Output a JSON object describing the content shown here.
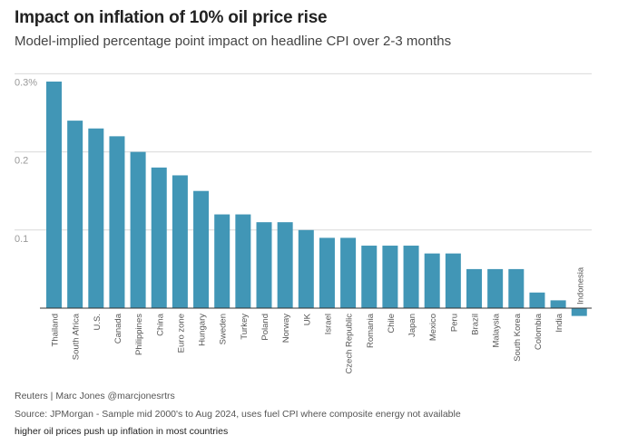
{
  "title": "Impact on inflation of 10% oil price rise",
  "subtitle": "Model-implied percentage point impact on headline CPI over 2-3 months",
  "credit": "Reuters | Marc Jones @marcjonesrtrs",
  "source": "Source: JPMorgan - Sample mid 2000's to Aug 2024, uses fuel CPI where composite energy not available",
  "caption": "higher oil prices push up inflation in most countries",
  "colors": {
    "bar": "#4196b6",
    "grid": "#d9d9d9",
    "tick": "#999999",
    "label": "#555555"
  },
  "chart_data": {
    "type": "bar",
    "title": "Impact on inflation of 10% oil price rise",
    "subtitle": "Model-implied percentage point impact on headline CPI over 2-3 months",
    "xlabel": "",
    "ylabel": "",
    "ylim": [
      0,
      0.3
    ],
    "yticks": [
      {
        "value": 0.3,
        "label": "0.3%"
      },
      {
        "value": 0.2,
        "label": "0.2"
      },
      {
        "value": 0.1,
        "label": "0.1"
      }
    ],
    "grid": true,
    "categories": [
      "Thailand",
      "South Africa",
      "U.S.",
      "Canada",
      "Philippines",
      "China",
      "Euro zone",
      "Hungary",
      "Sweden",
      "Turkey",
      "Poland",
      "Norway",
      "UK",
      "Israel",
      "Czech Republic",
      "Romania",
      "Chile",
      "Japan",
      "Mexico",
      "Peru",
      "Brazil",
      "Malaysia",
      "South Korea",
      "Colombia",
      "India",
      "Indonesia"
    ],
    "values": [
      0.29,
      0.24,
      0.23,
      0.22,
      0.2,
      0.18,
      0.17,
      0.15,
      0.12,
      0.12,
      0.11,
      0.11,
      0.1,
      0.09,
      0.09,
      0.08,
      0.08,
      0.08,
      0.07,
      0.07,
      0.05,
      0.05,
      0.05,
      0.02,
      0.01,
      -0.01
    ]
  }
}
